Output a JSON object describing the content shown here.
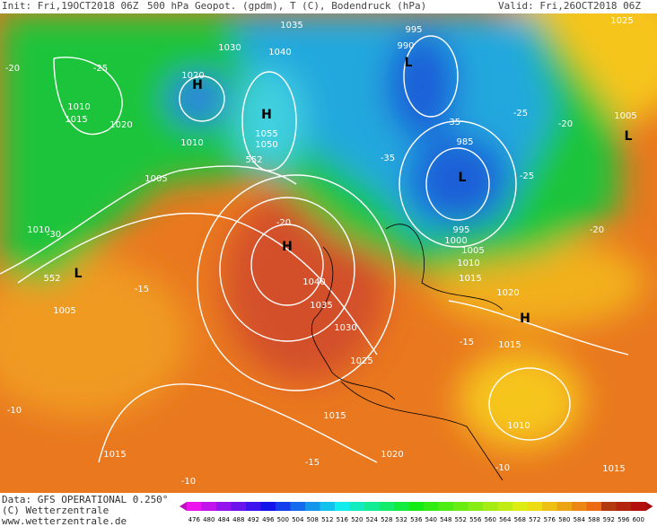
{
  "header": {
    "init": "Init: Fri,19OCT2018 06Z",
    "parameters": "500 hPa Geopot. (gpdm), T (C), Bodendruck (hPa)",
    "valid": "Valid: Fri,26OCT2018 06Z"
  },
  "map": {
    "labels": [
      "L",
      "L",
      "L",
      "L",
      "H",
      "H",
      "H",
      "H",
      "995",
      "990",
      "1030",
      "1035",
      "1040",
      "1020",
      "1010",
      "1015",
      "1020",
      "1005",
      "1055",
      "1050",
      "985",
      "995",
      "1000",
      "1005",
      "1010",
      "1015",
      "1040",
      "1035",
      "1030",
      "1025",
      "1015",
      "1020",
      "1010",
      "1015",
      "1005",
      "1025",
      "1005",
      "1010",
      "1015",
      "1020",
      "1015",
      "1010",
      "-25",
      "-20",
      "-30",
      "-35",
      "-35",
      "-25",
      "-20",
      "-25",
      "-20",
      "-20",
      "-15",
      "-15",
      "-10",
      "-10",
      "-15",
      "-10",
      "552",
      "552"
    ]
  },
  "footer": {
    "source": "Data: GFS OPERATIONAL 0.250°",
    "copyright": "(C) Wetterzentrale",
    "website": "www.wetterzentrale.de"
  },
  "colorbar": {
    "labels": [
      "476",
      "480",
      "484",
      "488",
      "492",
      "496",
      "500",
      "504",
      "508",
      "512",
      "516",
      "520",
      "524",
      "528",
      "532",
      "536",
      "540",
      "548",
      "552",
      "556",
      "560",
      "564",
      "568",
      "572",
      "576",
      "580",
      "584",
      "588",
      "592",
      "596",
      "600"
    ]
  }
}
